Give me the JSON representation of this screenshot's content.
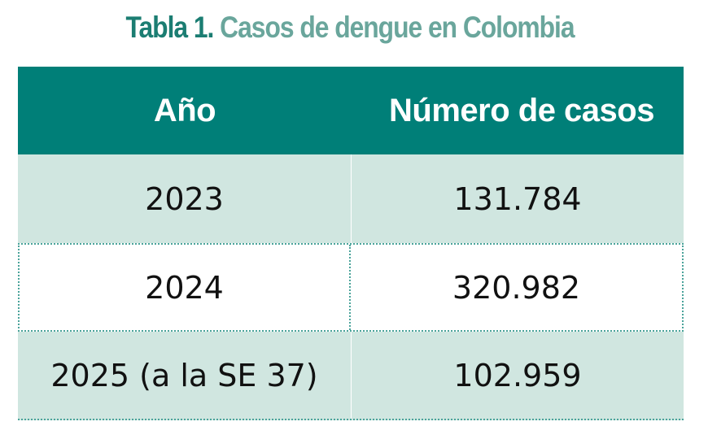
{
  "caption": {
    "label": "Tabla 1.",
    "title": "Casos de dengue en Colombia"
  },
  "table": {
    "headers": [
      "Año",
      "Número de casos"
    ],
    "rows": [
      [
        "2023",
        "131.784"
      ],
      [
        "2024",
        "320.982"
      ],
      [
        "2025 (a la SE 37)",
        "102.959"
      ]
    ]
  },
  "colors": {
    "header_bg": "#007f78",
    "shaded_row_bg": "#d0e6e0",
    "caption_label": "#1b7d72",
    "caption_title": "#6aa69c"
  }
}
